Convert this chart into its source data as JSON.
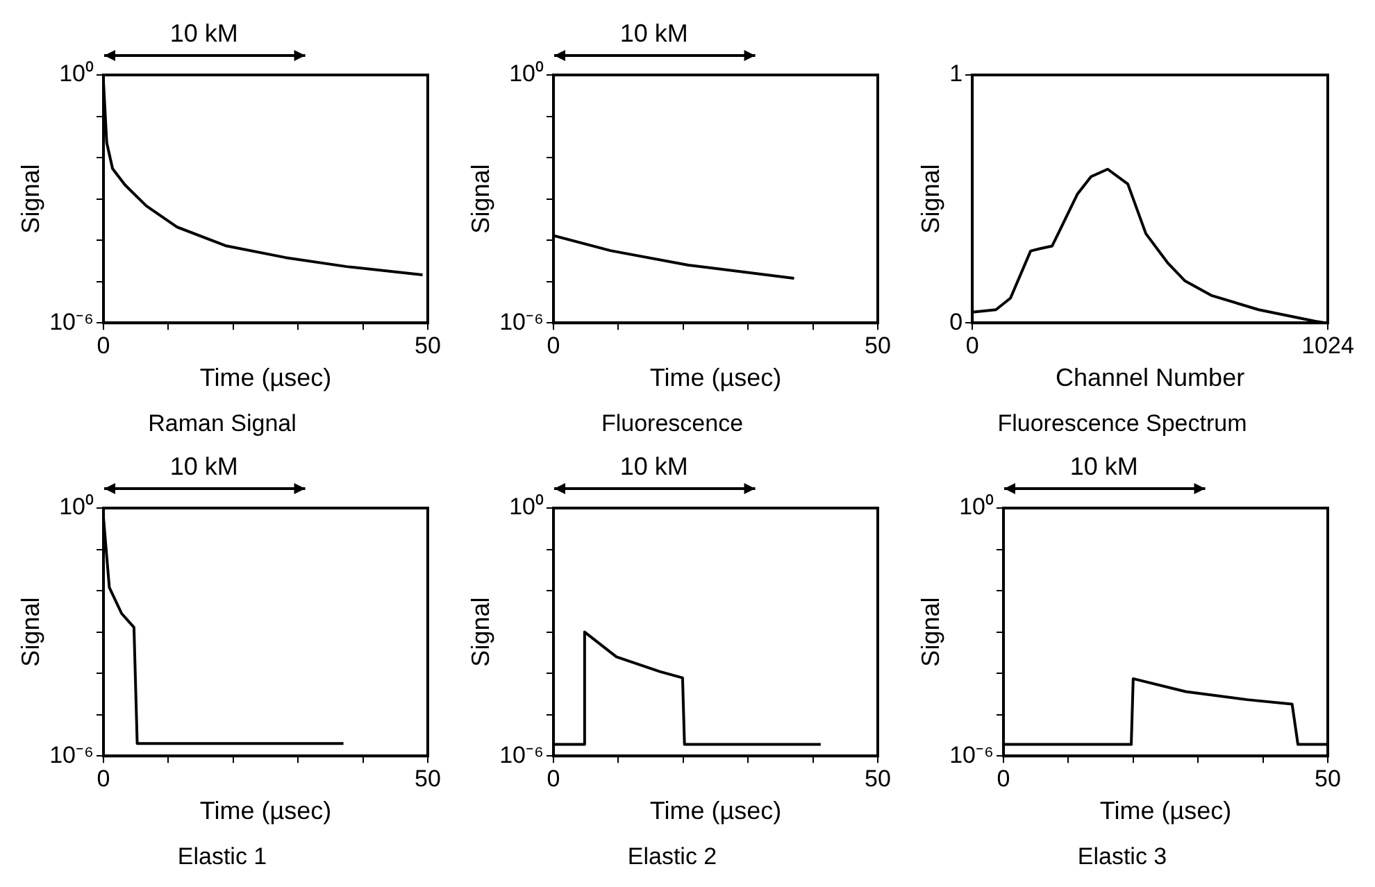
{
  "chart_data": [
    {
      "type": "line",
      "title": "Raman Signal",
      "xlabel": "Time (µsec)",
      "ylabel": "Signal",
      "annotations": [
        "10 kM"
      ],
      "log": true,
      "grid": false,
      "marker": "none",
      "line_style": "solid",
      "xlim": [
        0,
        50
      ],
      "xticks": [
        0,
        {
          "value": 10,
          "label": null
        },
        {
          "value": 20,
          "label": null
        },
        {
          "value": 30,
          "label": null
        },
        {
          "value": 40,
          "label": null
        },
        50
      ],
      "ylim": [
        1e-06,
        1
      ],
      "yticks": [
        {
          "value": 1e-06,
          "label": "10⁻⁶"
        },
        {
          "value": 1e-05,
          "label": null
        },
        {
          "value": 0.0001,
          "label": null
        },
        {
          "value": 0.001,
          "label": null
        },
        {
          "value": 0.01,
          "label": null
        },
        {
          "value": 0.1,
          "label": null
        },
        {
          "value": 1,
          "label": "10⁰"
        }
      ],
      "series": [
        {
          "color": "#000000",
          "x": [
            0,
            0.5,
            1.4,
            3.3,
            6.6,
            11.3,
            18.8,
            28.1,
            37.5,
            49.2
          ],
          "values": [
            0.68,
            0.023,
            0.0054,
            0.0022,
            0.00068,
            0.00021,
            7.4e-05,
            3.8e-05,
            2.3e-05,
            1.45e-05
          ]
        }
      ]
    },
    {
      "type": "line",
      "title": "Fluorescence",
      "xlabel": "Time (µsec)",
      "ylabel": "Signal",
      "annotations": [
        "10 kM"
      ],
      "log": true,
      "grid": false,
      "marker": "none",
      "line_style": "solid",
      "xlim": [
        0,
        50
      ],
      "xticks": [
        0,
        {
          "value": 10,
          "label": null
        },
        {
          "value": 20,
          "label": null
        },
        {
          "value": 30,
          "label": null
        },
        {
          "value": 40,
          "label": null
        },
        50
      ],
      "ylim": [
        1e-06,
        1
      ],
      "yticks": [
        {
          "value": 1e-06,
          "label": "10⁻⁶"
        },
        {
          "value": 1e-05,
          "label": null
        },
        {
          "value": 0.0001,
          "label": null
        },
        {
          "value": 0.001,
          "label": null
        },
        {
          "value": 0.01,
          "label": null
        },
        {
          "value": 0.1,
          "label": null
        },
        {
          "value": 1,
          "label": "10⁰"
        }
      ],
      "series": [
        {
          "color": "#000000",
          "x": [
            0,
            8.8,
            20.8,
            37.1
          ],
          "values": [
            0.00013,
            5.6e-05,
            2.5e-05,
            1.2e-05
          ]
        }
      ]
    },
    {
      "type": "line",
      "title": "Fluorescence Spectrum",
      "xlabel": "Channel Number",
      "ylabel": "Signal",
      "grid": false,
      "marker": "none",
      "line_style": "solid",
      "xlim": [
        0,
        1024
      ],
      "xticks": [
        0,
        1024
      ],
      "ylim": [
        0,
        1
      ],
      "yticks": [
        0,
        1
      ],
      "series": [
        {
          "color": "#000000",
          "x": [
            0,
            68,
            110,
            168,
            197,
            230,
            303,
            342,
            390,
            448,
            500,
            564,
            612,
            690,
            825,
            989,
            1018
          ],
          "values": [
            0.043,
            0.053,
            0.1,
            0.29,
            0.3,
            0.31,
            0.52,
            0.59,
            0.62,
            0.56,
            0.36,
            0.24,
            0.17,
            0.11,
            0.053,
            0.006,
            0
          ]
        }
      ]
    },
    {
      "type": "line",
      "title": "Elastic 1",
      "xlabel": "Time (µsec)",
      "ylabel": "Signal",
      "annotations": [
        "10 kM"
      ],
      "log": true,
      "grid": false,
      "marker": "none",
      "line_style": "solid",
      "xlim": [
        0,
        50
      ],
      "xticks": [
        0,
        {
          "value": 10,
          "label": null
        },
        {
          "value": 20,
          "label": null
        },
        {
          "value": 30,
          "label": null
        },
        {
          "value": 40,
          "label": null
        },
        50
      ],
      "ylim": [
        1e-06,
        1
      ],
      "yticks": [
        {
          "value": 1e-06,
          "label": "10⁻⁶"
        },
        {
          "value": 1e-05,
          "label": null
        },
        {
          "value": 0.0001,
          "label": null
        },
        {
          "value": 0.001,
          "label": null
        },
        {
          "value": 0.01,
          "label": null
        },
        {
          "value": 0.1,
          "label": null
        },
        {
          "value": 1,
          "label": "10⁰"
        }
      ],
      "series": [
        {
          "color": "#000000",
          "x": [
            0,
            0.9,
            2.8,
            4.7,
            5.2,
            37
          ],
          "values": [
            0.59,
            0.012,
            0.0028,
            0.0013,
            2e-06,
            2e-06
          ]
        }
      ]
    },
    {
      "type": "line",
      "title": "Elastic 2",
      "xlabel": "Time (µsec)",
      "ylabel": "Signal",
      "annotations": [
        "10 kM"
      ],
      "log": true,
      "grid": false,
      "marker": "none",
      "line_style": "solid",
      "xlim": [
        0,
        50
      ],
      "xticks": [
        0,
        {
          "value": 10,
          "label": null
        },
        {
          "value": 20,
          "label": null
        },
        {
          "value": 30,
          "label": null
        },
        {
          "value": 40,
          "label": null
        },
        50
      ],
      "ylim": [
        1e-06,
        1
      ],
      "yticks": [
        {
          "value": 1e-06,
          "label": "10⁻⁶"
        },
        {
          "value": 1e-05,
          "label": null
        },
        {
          "value": 0.0001,
          "label": null
        },
        {
          "value": 0.001,
          "label": null
        },
        {
          "value": 0.01,
          "label": null
        },
        {
          "value": 0.1,
          "label": null
        },
        {
          "value": 1,
          "label": "10⁰"
        }
      ],
      "series": [
        {
          "color": "#000000",
          "x": [
            0,
            4.8,
            4.8,
            9.7,
            16.4,
            19.9,
            20.2,
            41.2
          ],
          "values": [
            1.9e-06,
            1.9e-06,
            0.001,
            0.00025,
            0.00011,
            7.8e-05,
            1.9e-06,
            1.9e-06
          ]
        }
      ]
    },
    {
      "type": "line",
      "title": "Elastic 3",
      "xlabel": "Time (µsec)",
      "ylabel": "Signal",
      "annotations": [
        "10 kM"
      ],
      "log": true,
      "grid": false,
      "marker": "none",
      "line_style": "solid",
      "xlim": [
        0,
        50
      ],
      "xticks": [
        0,
        {
          "value": 10,
          "label": null
        },
        {
          "value": 20,
          "label": null
        },
        {
          "value": 30,
          "label": null
        },
        {
          "value": 40,
          "label": null
        },
        50
      ],
      "ylim": [
        1e-06,
        1
      ],
      "yticks": [
        {
          "value": 1e-06,
          "label": "10⁻⁶"
        },
        {
          "value": 1e-05,
          "label": null
        },
        {
          "value": 0.0001,
          "label": null
        },
        {
          "value": 0.001,
          "label": null
        },
        {
          "value": 0.01,
          "label": null
        },
        {
          "value": 0.1,
          "label": null
        },
        {
          "value": 1,
          "label": "10⁰"
        }
      ],
      "series": [
        {
          "color": "#000000",
          "x": [
            0,
            19.7,
            20,
            28.1,
            37.6,
            44.5,
            45.4,
            50
          ],
          "values": [
            1.9e-06,
            1.9e-06,
            7.4e-05,
            3.6e-05,
            2.3e-05,
            1.8e-05,
            1.9e-06,
            1.9e-06
          ]
        }
      ]
    }
  ]
}
